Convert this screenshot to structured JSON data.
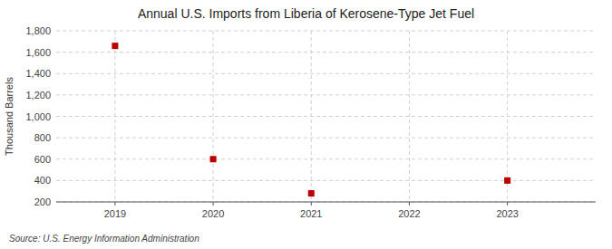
{
  "chart_data": {
    "type": "scatter",
    "title": "Annual U.S. Imports from Liberia of Kerosene-Type Jet Fuel",
    "ylabel": "Thousand Barrels",
    "annotation": "Source: U.S. Energy Information Administration",
    "x": [
      2019,
      2020,
      2021,
      2022,
      2023
    ],
    "values": [
      1659,
      600,
      280,
      null,
      400
    ],
    "color": "#bb0000",
    "marker": "square",
    "xlim": [
      2018.4,
      2023.9
    ],
    "xticks": [
      2019,
      2020,
      2021,
      2022,
      2023
    ],
    "ylim": [
      200,
      1800
    ],
    "yticks": [
      200,
      400,
      600,
      800,
      {
        "value": 1000,
        "label": "1,000"
      },
      {
        "value": 1200,
        "label": "1,200"
      },
      {
        "value": 1400,
        "label": "1,400"
      },
      {
        "value": 1600,
        "label": "1,600"
      },
      {
        "value": 1800,
        "label": "1,800"
      }
    ],
    "grid": true
  }
}
